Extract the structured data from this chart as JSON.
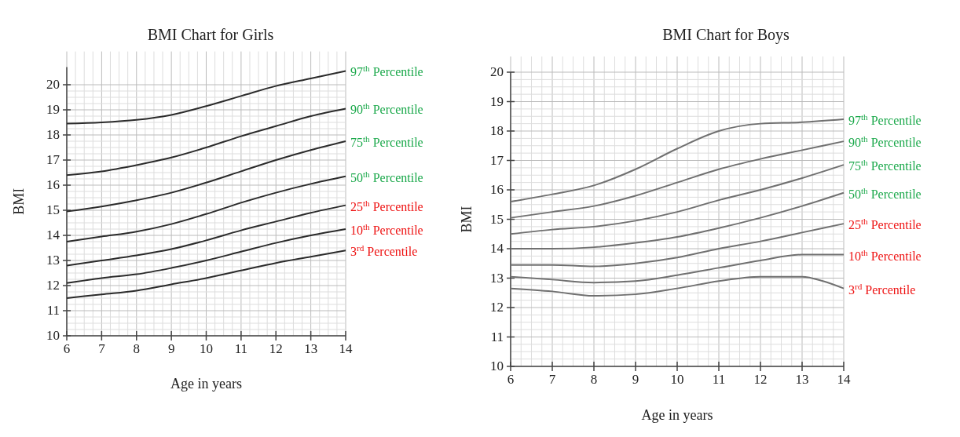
{
  "chart_data": [
    {
      "type": "line",
      "title": "BMI Chart for Girls",
      "xlabel": "Age in years",
      "ylabel": "BMI",
      "x": [
        6,
        7,
        8,
        9,
        10,
        11,
        12,
        13,
        14
      ],
      "xlim": [
        6,
        14
      ],
      "ylim": [
        10,
        20.7
      ],
      "xticks": [
        6,
        7,
        8,
        9,
        10,
        11,
        12,
        13,
        14
      ],
      "yticks": [
        10,
        11,
        12,
        13,
        14,
        15,
        16,
        17,
        18,
        19,
        20
      ],
      "grid": true,
      "marker": "none",
      "line_style": "solid",
      "series": [
        {
          "name": "97$^{th}$ Percentile",
          "color": "#2b2b2b",
          "values": [
            18.45,
            18.5,
            18.6,
            18.8,
            19.15,
            19.55,
            19.95,
            20.25,
            20.55
          ]
        },
        {
          "name": "90$^{th}$ Percentile",
          "color": "#2b2b2b",
          "values": [
            16.4,
            16.55,
            16.8,
            17.1,
            17.5,
            17.95,
            18.35,
            18.75,
            19.05
          ]
        },
        {
          "name": "75$^{th}$ Percentile",
          "color": "#2b2b2b",
          "values": [
            14.95,
            15.15,
            15.4,
            15.7,
            16.1,
            16.55,
            17.0,
            17.4,
            17.75
          ]
        },
        {
          "name": "50$^{th}$ Percentile",
          "color": "#2b2b2b",
          "values": [
            13.75,
            13.95,
            14.15,
            14.45,
            14.85,
            15.3,
            15.7,
            16.05,
            16.35
          ]
        },
        {
          "name": "25$^{th}$ Percentile",
          "color": "#2b2b2b",
          "values": [
            12.8,
            13.0,
            13.2,
            13.45,
            13.8,
            14.2,
            14.55,
            14.9,
            15.2
          ]
        },
        {
          "name": "10$^{th}$ Percentile",
          "color": "#2b2b2b",
          "values": [
            12.1,
            12.3,
            12.45,
            12.7,
            13.0,
            13.35,
            13.7,
            14.0,
            14.25
          ]
        },
        {
          "name": "3$^{rd}$ Percentile",
          "color": "#2b2b2b",
          "values": [
            11.5,
            11.65,
            11.8,
            12.05,
            12.3,
            12.6,
            12.9,
            13.15,
            13.4
          ]
        }
      ]
    },
    {
      "type": "line",
      "title": "BMI Chart for Boys",
      "xlabel": "Age in years",
      "ylabel": "BMI",
      "x": [
        6,
        7,
        8,
        9,
        10,
        11,
        12,
        13,
        14
      ],
      "xlim": [
        6,
        14
      ],
      "ylim": [
        10,
        20
      ],
      "xticks": [
        6,
        7,
        8,
        9,
        10,
        11,
        12,
        13,
        14
      ],
      "yticks": [
        10,
        11,
        12,
        13,
        14,
        15,
        16,
        17,
        18,
        19,
        20
      ],
      "grid": true,
      "marker": "none",
      "line_style": "solid",
      "series": [
        {
          "name": "97$^{th}$ Percentile",
          "color": "#707070",
          "values": [
            15.6,
            15.85,
            16.15,
            16.7,
            17.4,
            18.0,
            18.25,
            18.3,
            18.4
          ]
        },
        {
          "name": "90$^{th}$ Percentile",
          "color": "#707070",
          "values": [
            15.05,
            15.25,
            15.45,
            15.8,
            16.25,
            16.7,
            17.05,
            17.35,
            17.65
          ]
        },
        {
          "name": "75$^{th}$ Percentile",
          "color": "#707070",
          "values": [
            14.5,
            14.65,
            14.75,
            14.95,
            15.25,
            15.65,
            16.0,
            16.4,
            16.85
          ]
        },
        {
          "name": "50$^{th}$ Percentile",
          "color": "#707070",
          "values": [
            14.0,
            14.0,
            14.05,
            14.2,
            14.4,
            14.7,
            15.05,
            15.45,
            15.9
          ]
        },
        {
          "name": "25$^{th}$ Percentile",
          "color": "#707070",
          "values": [
            13.45,
            13.45,
            13.4,
            13.5,
            13.7,
            14.0,
            14.25,
            14.55,
            14.85
          ]
        },
        {
          "name": "10$^{th}$ Percentile",
          "color": "#707070",
          "values": [
            13.05,
            12.95,
            12.85,
            12.9,
            13.1,
            13.35,
            13.6,
            13.8,
            13.8
          ]
        },
        {
          "name": "3$^{rd}$ Percentile",
          "color": "#707070",
          "x": [
            6,
            7,
            8,
            9,
            10,
            11,
            12,
            13,
            13.5,
            14
          ],
          "values": [
            12.65,
            12.55,
            12.4,
            12.45,
            12.65,
            12.9,
            13.05,
            13.05,
            12.9,
            12.65
          ]
        }
      ]
    }
  ]
}
